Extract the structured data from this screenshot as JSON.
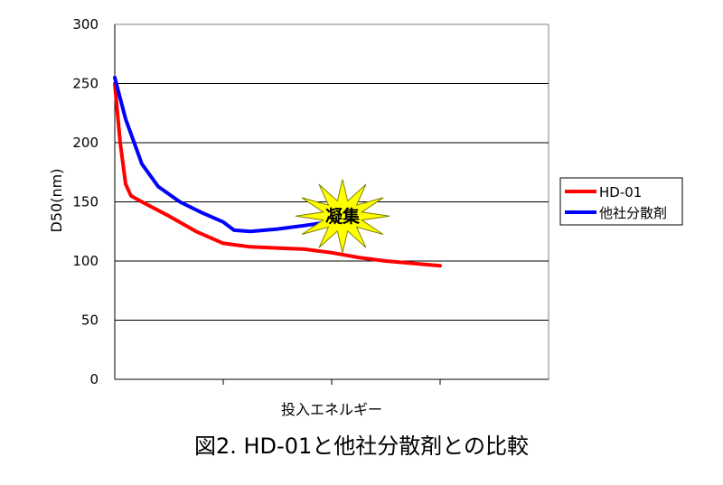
{
  "caption": "図2. HD-01と他社分散剤との比較",
  "chart_data": {
    "type": "line",
    "xlabel": "投入エネルギー",
    "ylabel": "D50(nm)",
    "ylim": [
      0,
      300
    ],
    "yticks": [
      0,
      50,
      100,
      150,
      200,
      250,
      300
    ],
    "grid": true,
    "legend_position": "right",
    "series": [
      {
        "name": "HD-01",
        "color": "#ff0000",
        "points": [
          [
            0,
            250
          ],
          [
            0.05,
            200
          ],
          [
            0.1,
            165
          ],
          [
            0.15,
            155
          ],
          [
            0.25,
            150
          ],
          [
            0.5,
            138
          ],
          [
            0.75,
            125
          ],
          [
            1.0,
            115
          ],
          [
            1.25,
            112
          ],
          [
            1.5,
            111
          ],
          [
            1.75,
            110
          ],
          [
            2.0,
            107
          ],
          [
            2.25,
            103
          ],
          [
            2.5,
            100
          ],
          [
            2.75,
            98
          ],
          [
            3.0,
            96
          ]
        ]
      },
      {
        "name": "他社分散剤",
        "color": "#0000ff",
        "points": [
          [
            0,
            255
          ],
          [
            0.1,
            220
          ],
          [
            0.25,
            182
          ],
          [
            0.4,
            163
          ],
          [
            0.6,
            150
          ],
          [
            0.8,
            141
          ],
          [
            1.0,
            133
          ],
          [
            1.1,
            126
          ],
          [
            1.25,
            125
          ],
          [
            1.5,
            127
          ],
          [
            1.75,
            130
          ],
          [
            1.9,
            132
          ]
        ]
      }
    ],
    "annotations": [
      {
        "text": "凝集",
        "shape": "starburst",
        "color": "#ffff00",
        "x": 2.1,
        "y": 138
      }
    ]
  }
}
